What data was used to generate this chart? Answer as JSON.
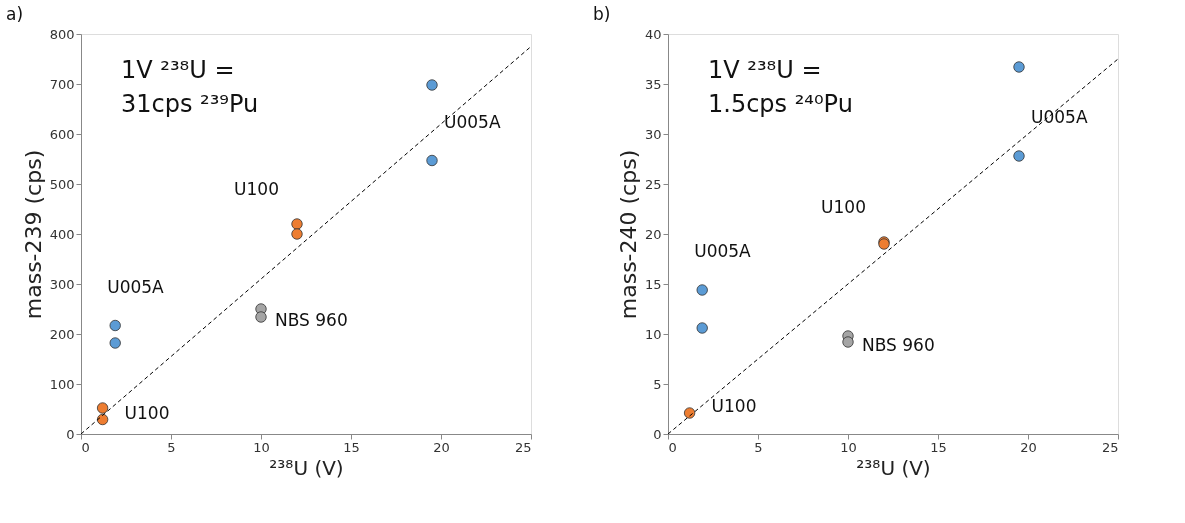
{
  "chart_data": [
    {
      "type": "scatter",
      "title": "a)",
      "xlabel": "²³⁸U (V)",
      "ylabel": "mass-239 (cps)",
      "xlim": [
        0,
        25
      ],
      "xticks": [
        0,
        5,
        10,
        15,
        20,
        25
      ],
      "ylim": [
        0,
        800
      ],
      "yticks": [
        0,
        100,
        200,
        300,
        400,
        500,
        600,
        700,
        800
      ],
      "grid": false,
      "series": [
        {
          "color": "#5b9bd5",
          "x": [
            1.9,
            1.9,
            19.5,
            19.5
          ],
          "values": [
            217,
            182,
            698,
            547
          ]
        },
        {
          "color": "#ed7d31",
          "x": [
            1.2,
            1.2,
            12,
            12
          ],
          "values": [
            52,
            29,
            420,
            400
          ]
        },
        {
          "color": "#a5a5a5",
          "x": [
            10,
            10
          ],
          "values": [
            250,
            234
          ]
        },
        {
          "type": "line",
          "color": "#000000",
          "line_style": "dashed",
          "x": [
            0,
            25
          ],
          "values": [
            0,
            775
          ]
        }
      ],
      "annotations": [
        "1V ²³⁸U =\n31cps ²³⁹Pu",
        {
          "text": "U005A",
          "x": 1.9,
          "y": 217
        },
        {
          "text": "U100",
          "x": 1.2,
          "y": 29
        },
        {
          "text": "NBS 960",
          "x": 10,
          "y": 234
        },
        {
          "text": "U100",
          "x": 12,
          "y": 420
        },
        {
          "text": "U005A",
          "x": 19.5,
          "y": 547
        }
      ]
    },
    {
      "type": "scatter",
      "title": "b)",
      "xlabel": "²³⁸U (V)",
      "ylabel": "mass-240 (cps)",
      "xlim": [
        0,
        25
      ],
      "xticks": [
        0,
        5,
        10,
        15,
        20,
        25
      ],
      "ylim": [
        0,
        40
      ],
      "yticks": [
        0,
        5,
        10,
        15,
        20,
        25,
        30,
        35,
        40
      ],
      "grid": false,
      "series": [
        {
          "color": "#5b9bd5",
          "x": [
            1.9,
            1.9,
            19.5,
            19.5
          ],
          "values": [
            14.4,
            10.6,
            36.7,
            27.8
          ]
        },
        {
          "color": "#ed7d31",
          "x": [
            1.2,
            12,
            12
          ],
          "values": [
            2.1,
            19.2,
            19.0
          ]
        },
        {
          "color": "#a5a5a5",
          "x": [
            10,
            10
          ],
          "values": [
            9.8,
            9.2
          ]
        },
        {
          "type": "line",
          "color": "#000000",
          "line_style": "dashed",
          "x": [
            0,
            25
          ],
          "values": [
            0,
            37.5
          ]
        }
      ],
      "annotations": [
        "1V ²³⁸U =\n1.5cps ²⁴⁰Pu",
        {
          "text": "U005A",
          "x": 1.9,
          "y": 14.4
        },
        {
          "text": "U100",
          "x": 1.2,
          "y": 2.1
        },
        {
          "text": "NBS 960",
          "x": 10,
          "y": 9.2
        },
        {
          "text": "U100",
          "x": 12,
          "y": 19.2
        },
        {
          "text": "U005A",
          "x": 19.5,
          "y": 27.8
        }
      ]
    }
  ]
}
